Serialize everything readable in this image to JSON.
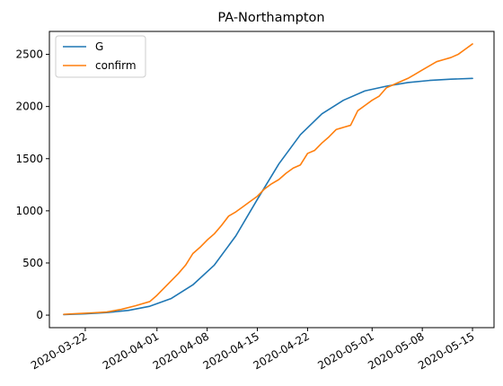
{
  "chart_data": {
    "type": "line",
    "title": "PA-Northampton",
    "xlabel": "",
    "ylabel": "",
    "x_start": "2020-03-19",
    "x_end": "2020-05-15",
    "xlim": [
      "2020-03-17",
      "2020-05-18"
    ],
    "ylim": [
      -120,
      2720
    ],
    "x_ticks": [
      "2020-03-22",
      "2020-04-01",
      "2020-04-08",
      "2020-04-15",
      "2020-04-22",
      "2020-05-01",
      "2020-05-08",
      "2020-05-15"
    ],
    "y_ticks": [
      0,
      500,
      1000,
      1500,
      2000,
      2500
    ],
    "legend_position": "top-left",
    "grid": false,
    "series": [
      {
        "name": "G",
        "color": "#1f77b4",
        "points": [
          [
            "2020-03-19",
            5
          ],
          [
            "2020-03-22",
            13
          ],
          [
            "2020-03-25",
            25
          ],
          [
            "2020-03-28",
            45
          ],
          [
            "2020-03-31",
            85
          ],
          [
            "2020-04-03",
            160
          ],
          [
            "2020-04-06",
            290
          ],
          [
            "2020-04-09",
            480
          ],
          [
            "2020-04-12",
            760
          ],
          [
            "2020-04-15",
            1110
          ],
          [
            "2020-04-18",
            1450
          ],
          [
            "2020-04-21",
            1730
          ],
          [
            "2020-04-24",
            1930
          ],
          [
            "2020-04-27",
            2060
          ],
          [
            "2020-04-30",
            2150
          ],
          [
            "2020-05-03",
            2195
          ],
          [
            "2020-05-06",
            2230
          ],
          [
            "2020-05-09",
            2250
          ],
          [
            "2020-05-12",
            2262
          ],
          [
            "2020-05-15",
            2270
          ]
        ]
      },
      {
        "name": "confirm",
        "color": "#ff7f0e",
        "points": [
          [
            "2020-03-19",
            8
          ],
          [
            "2020-03-21",
            15
          ],
          [
            "2020-03-23",
            22
          ],
          [
            "2020-03-25",
            30
          ],
          [
            "2020-03-27",
            55
          ],
          [
            "2020-03-29",
            90
          ],
          [
            "2020-03-31",
            130
          ],
          [
            "2020-04-01",
            190
          ],
          [
            "2020-04-02",
            260
          ],
          [
            "2020-04-03",
            330
          ],
          [
            "2020-04-04",
            400
          ],
          [
            "2020-04-05",
            480
          ],
          [
            "2020-04-06",
            590
          ],
          [
            "2020-04-07",
            650
          ],
          [
            "2020-04-08",
            720
          ],
          [
            "2020-04-09",
            780
          ],
          [
            "2020-04-10",
            860
          ],
          [
            "2020-04-11",
            950
          ],
          [
            "2020-04-12",
            990
          ],
          [
            "2020-04-13",
            1040
          ],
          [
            "2020-04-14",
            1090
          ],
          [
            "2020-04-15",
            1140
          ],
          [
            "2020-04-16",
            1210
          ],
          [
            "2020-04-17",
            1260
          ],
          [
            "2020-04-18",
            1300
          ],
          [
            "2020-04-19",
            1360
          ],
          [
            "2020-04-20",
            1410
          ],
          [
            "2020-04-21",
            1440
          ],
          [
            "2020-04-22",
            1550
          ],
          [
            "2020-04-23",
            1580
          ],
          [
            "2020-04-24",
            1650
          ],
          [
            "2020-04-25",
            1710
          ],
          [
            "2020-04-26",
            1780
          ],
          [
            "2020-04-27",
            1800
          ],
          [
            "2020-04-28",
            1820
          ],
          [
            "2020-04-29",
            1960
          ],
          [
            "2020-04-30",
            2010
          ],
          [
            "2020-05-01",
            2060
          ],
          [
            "2020-05-02",
            2100
          ],
          [
            "2020-05-03",
            2180
          ],
          [
            "2020-05-04",
            2210
          ],
          [
            "2020-05-05",
            2240
          ],
          [
            "2020-05-06",
            2270
          ],
          [
            "2020-05-07",
            2310
          ],
          [
            "2020-05-08",
            2350
          ],
          [
            "2020-05-09",
            2390
          ],
          [
            "2020-05-10",
            2430
          ],
          [
            "2020-05-11",
            2450
          ],
          [
            "2020-05-12",
            2470
          ],
          [
            "2020-05-13",
            2500
          ],
          [
            "2020-05-14",
            2550
          ],
          [
            "2020-05-15",
            2600
          ]
        ]
      }
    ]
  }
}
